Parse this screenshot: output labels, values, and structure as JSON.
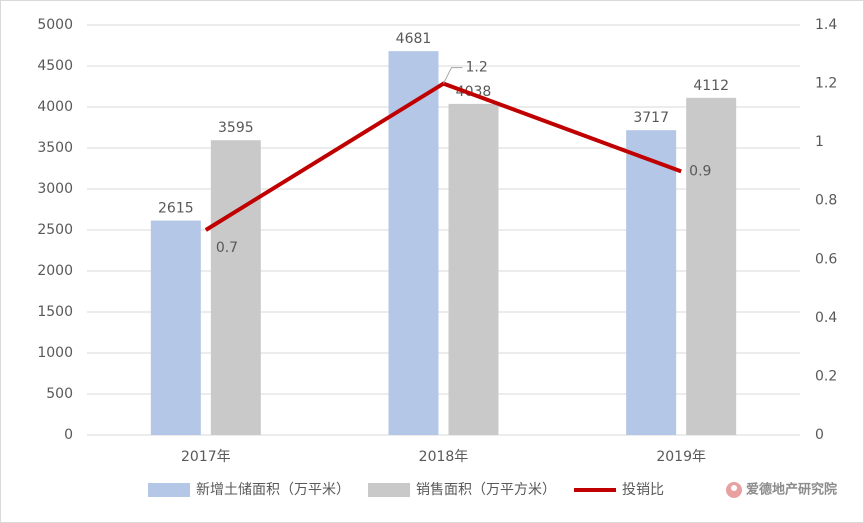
{
  "chart_data": {
    "type": "bar",
    "categories": [
      "2017年",
      "2018年",
      "2019年"
    ],
    "series": [
      {
        "name": "新增土储面积（万平米）",
        "color": "#b4c7e7",
        "values": [
          2615,
          4681,
          3717
        ]
      },
      {
        "name": "销售面积（万平方米）",
        "color": "#c9c9c9",
        "values": [
          3595,
          4038,
          4112
        ]
      },
      {
        "name": "投销比",
        "color": "#c00000",
        "type": "line",
        "axis": "y2",
        "values": [
          0.7,
          1.2,
          0.9
        ]
      }
    ],
    "ylim": [
      0,
      5000
    ],
    "yticks": [
      0,
      500,
      1000,
      1500,
      2000,
      2500,
      3000,
      3500,
      4000,
      4500,
      5000
    ],
    "y2lim": [
      0,
      1.4
    ],
    "y2ticks": [
      0,
      0.2,
      0.4,
      0.6,
      0.8,
      1,
      1.2,
      1.4
    ],
    "grid": true,
    "legend": "bottom",
    "watermark": "爱德地产研究院"
  }
}
